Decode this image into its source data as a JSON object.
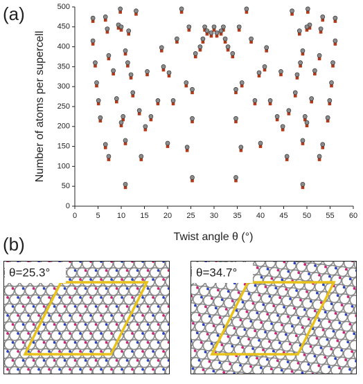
{
  "chart_data": {
    "type": "scatter",
    "panel_label": "(a)",
    "xlabel": "Twist angle θ (°)",
    "ylabel": "Number of atoms per supercell",
    "xlim": [
      0,
      60
    ],
    "xticks": [
      0,
      5,
      10,
      15,
      20,
      25,
      30,
      35,
      40,
      45,
      50,
      55,
      60
    ],
    "ylim": [
      0,
      500
    ],
    "yticks": [
      0,
      50,
      100,
      150,
      200,
      250,
      300,
      350,
      400,
      450,
      500
    ],
    "x": [
      3.9,
      3.9,
      4.4,
      4.7,
      5.1,
      5.5,
      6.6,
      6.6,
      7.0,
      7.3,
      7.3,
      8.3,
      9.0,
      9.4,
      9.8,
      10.0,
      10.0,
      10.4,
      10.9,
      10.9,
      10.9,
      11.4,
      11.6,
      12.1,
      12.5,
      13.2,
      13.9,
      14.3,
      15.2,
      15.6,
      16.4,
      17.9,
      18.7,
      19.1,
      20.0,
      20.3,
      21.2,
      22.0,
      23.0,
      24.0,
      24.2,
      24.6,
      25.3,
      25.3,
      25.3,
      26.0,
      27.0,
      27.6,
      28.0,
      28.5,
      29.4,
      30.0,
      56.1,
      56.1,
      55.6,
      55.3,
      54.9,
      54.5,
      53.4,
      53.4,
      53.0,
      52.7,
      52.7,
      51.7,
      51.0,
      50.6,
      50.2,
      50.0,
      50.0,
      49.6,
      49.1,
      49.1,
      49.1,
      48.6,
      48.4,
      47.9,
      47.5,
      46.8,
      46.1,
      45.7,
      44.8,
      44.4,
      43.6,
      42.1,
      41.3,
      40.9,
      40.0,
      39.7,
      38.8,
      38.0,
      37.0,
      36.0,
      35.8,
      35.4,
      34.7,
      34.7,
      34.7,
      34.0,
      33.0,
      32.4,
      32.0,
      31.5,
      30.6
    ],
    "series": [
      {
        "marker": "circle",
        "color": "#8c8c8c",
        "values": [
          472,
          415,
          360,
          310,
          265,
          222,
          155,
          475,
          445,
          125,
          378,
          340,
          270,
          455,
          495,
          450,
          210,
          225,
          55,
          165,
          390,
          360,
          440,
          330,
          285,
          490,
          240,
          125,
          200,
          338,
          225,
          265,
          398,
          350,
          158,
          335,
          265,
          420,
          495,
          310,
          148,
          450,
          72,
          220,
          293,
          383,
          400,
          420,
          450,
          440,
          435,
          450,
          472,
          415,
          360,
          310,
          265,
          222,
          155,
          475,
          445,
          125,
          378,
          340,
          270,
          455,
          495,
          450,
          210,
          225,
          55,
          165,
          390,
          360,
          440,
          330,
          285,
          490,
          240,
          125,
          200,
          338,
          225,
          265,
          398,
          350,
          158,
          335,
          265,
          420,
          495,
          310,
          148,
          450,
          72,
          220,
          293,
          383,
          400,
          420,
          450,
          440,
          435
        ]
      },
      {
        "marker": "square",
        "color": "#b03a1a",
        "values": [
          464,
          407,
          352,
          302,
          257,
          214,
          147,
          467,
          437,
          117,
          370,
          332,
          262,
          447,
          487,
          442,
          202,
          217,
          47,
          157,
          382,
          352,
          432,
          322,
          277,
          482,
          232,
          117,
          192,
          330,
          217,
          257,
          390,
          342,
          150,
          327,
          257,
          412,
          487,
          302,
          140,
          442,
          64,
          212,
          285,
          375,
          392,
          412,
          442,
          432,
          427,
          442,
          464,
          407,
          352,
          302,
          257,
          214,
          147,
          467,
          437,
          117,
          370,
          332,
          262,
          447,
          487,
          442,
          202,
          217,
          47,
          157,
          382,
          352,
          432,
          322,
          277,
          482,
          232,
          117,
          192,
          330,
          217,
          257,
          390,
          342,
          150,
          327,
          257,
          412,
          487,
          302,
          140,
          442,
          64,
          212,
          285,
          375,
          392,
          412,
          442,
          432,
          427
        ]
      }
    ]
  },
  "panel_b": {
    "panel_label": "(b)",
    "images": [
      {
        "label": "θ=25.3°"
      },
      {
        "label": "θ=34.7°"
      }
    ]
  }
}
